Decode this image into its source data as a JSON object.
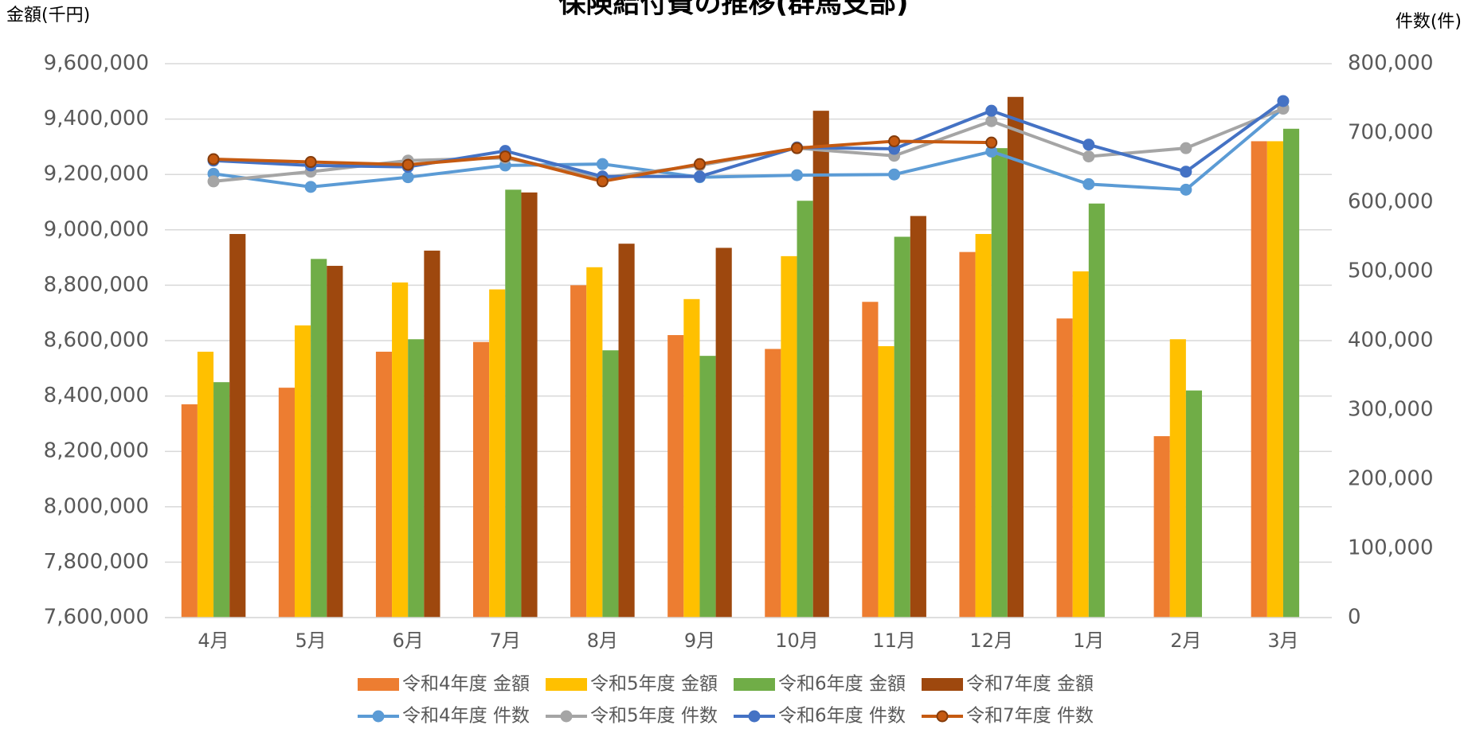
{
  "chart_data": {
    "type": "combo",
    "title": "保険給付費の推移(群馬支部)",
    "y_label": "金額(千円)",
    "y2_label": "件数(件)",
    "categories": [
      "4月",
      "5月",
      "6月",
      "7月",
      "8月",
      "9月",
      "10月",
      "11月",
      "12月",
      "1月",
      "2月",
      "3月"
    ],
    "ylim": [
      7600000,
      9600000
    ],
    "yticks": [
      {
        "value": 7600000,
        "label": "7,600,000"
      },
      {
        "value": 7800000,
        "label": "7,800,000"
      },
      {
        "value": 8000000,
        "label": "8,000,000"
      },
      {
        "value": 8200000,
        "label": "8,200,000"
      },
      {
        "value": 8400000,
        "label": "8,400,000"
      },
      {
        "value": 8600000,
        "label": "8,600,000"
      },
      {
        "value": 8800000,
        "label": "8,800,000"
      },
      {
        "value": 9000000,
        "label": "9,000,000"
      },
      {
        "value": 9200000,
        "label": "9,200,000"
      },
      {
        "value": 9400000,
        "label": "9,400,000"
      },
      {
        "value": 9600000,
        "label": "9,600,000"
      }
    ],
    "y2lim": [
      0,
      800000
    ],
    "y2ticks": [
      0,
      {
        "value": 100000,
        "label": "100,000"
      },
      {
        "value": 200000,
        "label": "200,000"
      },
      {
        "value": 300000,
        "label": "300,000"
      },
      {
        "value": 400000,
        "label": "400,000"
      },
      {
        "value": 500000,
        "label": "500,000"
      },
      {
        "value": 600000,
        "label": "600,000"
      },
      {
        "value": 700000,
        "label": "700,000"
      },
      {
        "value": 800000,
        "label": "800,000"
      }
    ],
    "grid": true,
    "legend": "bottom",
    "series": [
      {
        "name": "令和4年度 金額",
        "type": "bar",
        "color": "#ED7D31",
        "values": [
          8370000,
          8430000,
          8560000,
          8595000,
          8800000,
          8620000,
          8570000,
          8740000,
          8920000,
          8680000,
          8255000,
          9320000
        ]
      },
      {
        "name": "令和5年度 金額",
        "type": "bar",
        "color": "#FFC000",
        "values": [
          8560000,
          8655000,
          8810000,
          8785000,
          8865000,
          8750000,
          8905000,
          8580000,
          8985000,
          8850000,
          8605000,
          9320000
        ]
      },
      {
        "name": "令和6年度 金額",
        "type": "bar",
        "color": "#70AD47",
        "values": [
          8450000,
          8895000,
          8605000,
          9145000,
          8565000,
          8545000,
          9105000,
          8975000,
          9295000,
          9095000,
          8420000,
          9365000
        ]
      },
      {
        "name": "令和7年度 金額",
        "type": "bar",
        "color": "#9E480E",
        "values": [
          8985000,
          8870000,
          8925000,
          9135000,
          8950000,
          8935000,
          9430000,
          9050000,
          9480000,
          null,
          null,
          null
        ]
      },
      {
        "name": "令和4年度 件数",
        "type": "line",
        "axis": "y2",
        "color": "#5B9BD5",
        "values": [
          641000,
          622000,
          636000,
          653000,
          655000,
          636000,
          639000,
          640000,
          673000,
          626000,
          618000,
          736000
        ]
      },
      {
        "name": "令和5年度 件数",
        "type": "line",
        "axis": "y2",
        "color": "#A5A5A5",
        "values": [
          630000,
          644000,
          660000,
          664000,
          635000,
          653000,
          678000,
          667000,
          717000,
          666000,
          678000,
          735000
        ]
      },
      {
        "name": "令和6年度 件数",
        "type": "line",
        "axis": "y2",
        "color": "#4472C4",
        "values": [
          660000,
          653000,
          651000,
          674000,
          637000,
          637000,
          679000,
          677000,
          732000,
          683000,
          644000,
          746000
        ]
      },
      {
        "name": "令和7年度 件数",
        "type": "line",
        "axis": "y2",
        "color": "#C55A11",
        "values": [
          662000,
          658000,
          654000,
          666000,
          630000,
          655000,
          678000,
          688000,
          686000,
          null,
          null,
          null
        ]
      }
    ]
  }
}
